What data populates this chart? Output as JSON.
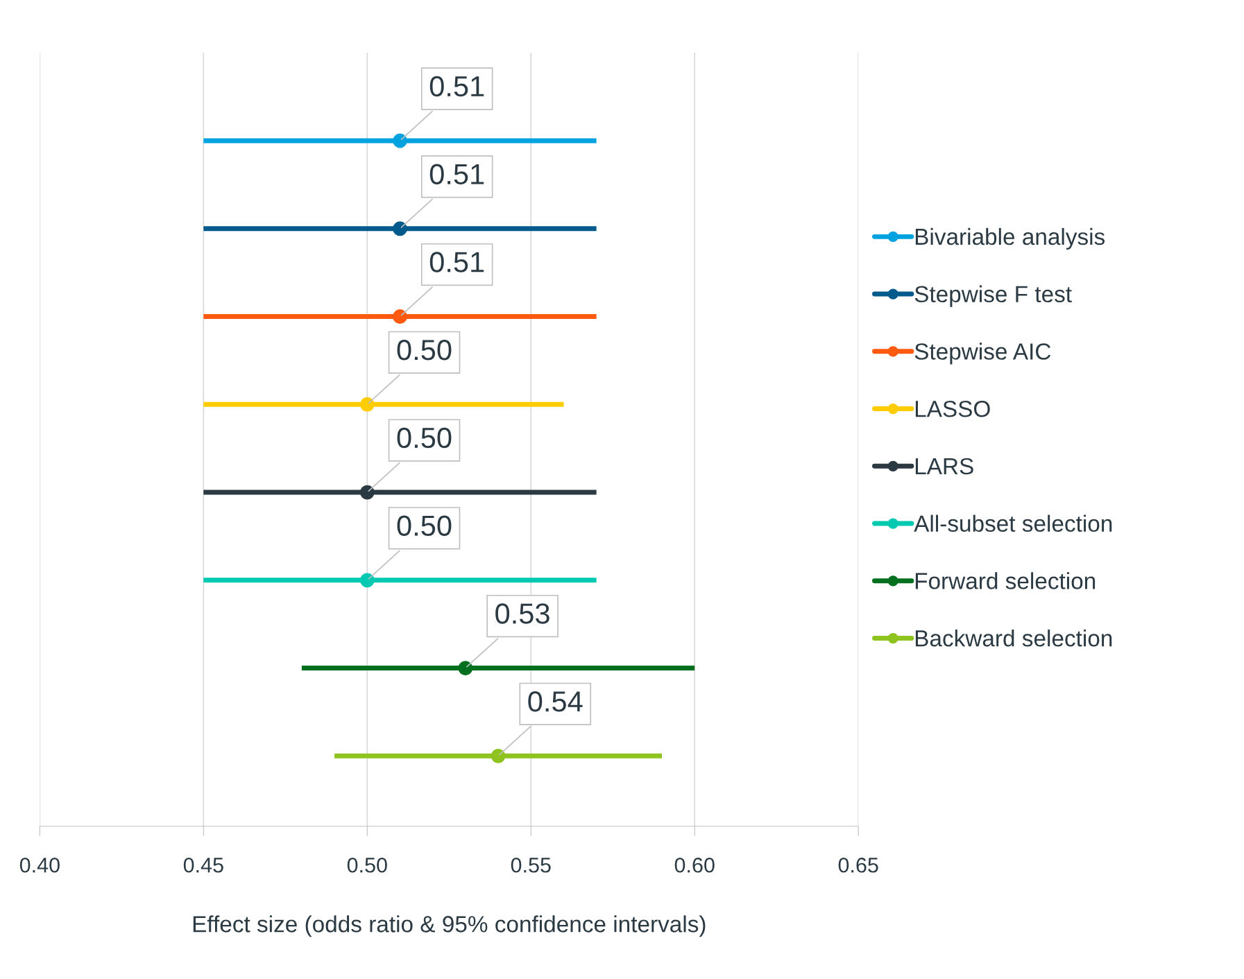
{
  "chart_data": {
    "type": "scatter",
    "orientation": "horizontal",
    "xlabel": "Effect size (odds ratio & 95% confidence intervals)",
    "categories": [
      null,
      null,
      null,
      null,
      null,
      null,
      null,
      null
    ],
    "series": [
      {
        "name": "Bivariable analysis",
        "color": "#00a2e0",
        "values": [
          0.51,
          null,
          null,
          null,
          null,
          null,
          null,
          null
        ],
        "errors": [
          [
            0.45,
            0.57
          ],
          null,
          null,
          null,
          null,
          null,
          null,
          null
        ],
        "value_labels": [
          "0.51",
          null,
          null,
          null,
          null,
          null,
          null,
          null
        ]
      },
      {
        "name": "Stepwise F test",
        "color": "#005a8c",
        "values": [
          null,
          0.51,
          null,
          null,
          null,
          null,
          null,
          null
        ],
        "errors": [
          null,
          [
            0.45,
            0.57
          ],
          null,
          null,
          null,
          null,
          null,
          null
        ],
        "value_labels": [
          null,
          "0.51",
          null,
          null,
          null,
          null,
          null,
          null
        ]
      },
      {
        "name": "Stepwise AIC",
        "color": "#ff5a0f",
        "values": [
          null,
          null,
          0.51,
          null,
          null,
          null,
          null,
          null
        ],
        "errors": [
          null,
          null,
          [
            0.45,
            0.57
          ],
          null,
          null,
          null,
          null,
          null
        ],
        "value_labels": [
          null,
          null,
          "0.51",
          null,
          null,
          null,
          null,
          null
        ]
      },
      {
        "name": "LASSO",
        "color": "#ffcc00",
        "values": [
          null,
          null,
          null,
          0.5,
          null,
          null,
          null,
          null
        ],
        "errors": [
          null,
          null,
          null,
          [
            0.45,
            0.56
          ],
          null,
          null,
          null,
          null
        ],
        "value_labels": [
          null,
          null,
          null,
          "0.50",
          null,
          null,
          null,
          null
        ]
      },
      {
        "name": "LARS",
        "color": "#2b3a42",
        "values": [
          null,
          null,
          null,
          null,
          0.5,
          null,
          null,
          null
        ],
        "errors": [
          null,
          null,
          null,
          null,
          [
            0.45,
            0.57
          ],
          null,
          null,
          null
        ],
        "value_labels": [
          null,
          null,
          null,
          null,
          "0.50",
          null,
          null,
          null
        ]
      },
      {
        "name": "All-subset selection",
        "color": "#00c9b1",
        "values": [
          null,
          null,
          null,
          null,
          null,
          0.5,
          null,
          null
        ],
        "errors": [
          null,
          null,
          null,
          null,
          null,
          [
            0.45,
            0.57
          ],
          null,
          null
        ],
        "value_labels": [
          null,
          null,
          null,
          null,
          null,
          "0.50",
          null,
          null
        ]
      },
      {
        "name": "Forward selection",
        "color": "#00701f",
        "values": [
          null,
          null,
          null,
          null,
          null,
          null,
          0.53,
          null
        ],
        "errors": [
          null,
          null,
          null,
          null,
          null,
          null,
          [
            0.48,
            0.6
          ],
          null
        ],
        "value_labels": [
          null,
          null,
          null,
          null,
          null,
          null,
          "0.53",
          null
        ]
      },
      {
        "name": "Backward selection",
        "color": "#8fc31f",
        "values": [
          null,
          null,
          null,
          null,
          null,
          null,
          null,
          0.54
        ],
        "errors": [
          null,
          null,
          null,
          null,
          null,
          null,
          null,
          [
            0.49,
            0.59
          ]
        ],
        "value_labels": [
          null,
          null,
          null,
          null,
          null,
          null,
          null,
          "0.54"
        ]
      }
    ],
    "xlim": [
      0.4,
      0.65
    ],
    "xticks": [
      {
        "value": 0.4,
        "label": "0.40"
      },
      {
        "value": 0.45,
        "label": "0.45"
      },
      {
        "value": 0.5,
        "label": "0.50"
      },
      {
        "value": 0.55,
        "label": "0.55"
      },
      {
        "value": 0.6,
        "label": "0.60"
      },
      {
        "value": 0.65,
        "label": "0.65"
      }
    ],
    "grid": "x",
    "legend": "right",
    "marker": "circle",
    "line_style": "solid"
  }
}
